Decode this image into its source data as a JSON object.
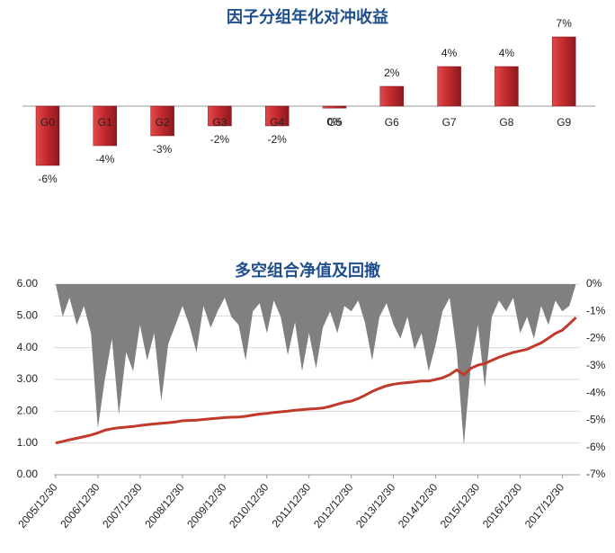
{
  "chart_data": [
    {
      "type": "bar",
      "title": "因子分组年化对冲收益",
      "categories": [
        "G0",
        "G1",
        "G2",
        "G3",
        "G4",
        "G5",
        "G6",
        "G7",
        "G8",
        "G9"
      ],
      "values": [
        -6,
        -4,
        -3,
        -2,
        -2,
        -0.2,
        2,
        4,
        4,
        7
      ],
      "value_labels": [
        "-6%",
        "-4%",
        "-3%",
        "-2%",
        "-2%",
        "0%",
        "2%",
        "4%",
        "4%",
        "7%"
      ],
      "color": "#c0272d"
    },
    {
      "type": "line",
      "title": "多空组合净值及回撤",
      "x": [
        "2005/12/30",
        "2006/02/28",
        "2006/04/28",
        "2006/06/30",
        "2006/08/31",
        "2006/10/31",
        "2006/12/29",
        "2007/02/28",
        "2007/04/30",
        "2007/06/29",
        "2007/08/31",
        "2007/10/31",
        "2007/12/28",
        "2008/02/29",
        "2008/04/30",
        "2008/06/30",
        "2008/08/29",
        "2008/10/31",
        "2008/12/31",
        "2009/02/27",
        "2009/04/30",
        "2009/06/30",
        "2009/08/31",
        "2009/10/30",
        "2009/12/31",
        "2010/02/26",
        "2010/04/30",
        "2010/06/30",
        "2010/08/31",
        "2010/10/29",
        "2010/12/31",
        "2011/02/28",
        "2011/04/29",
        "2011/06/30",
        "2011/08/31",
        "2011/10/31",
        "2011/12/30",
        "2012/02/29",
        "2012/04/27",
        "2012/06/29",
        "2012/08/31",
        "2012/10/31",
        "2012/12/31",
        "2013/02/28",
        "2013/04/26",
        "2013/06/28",
        "2013/08/30",
        "2013/10/31",
        "2013/12/31",
        "2014/02/28",
        "2014/04/30",
        "2014/06/30",
        "2014/08/29",
        "2014/10/31",
        "2014/12/31",
        "2015/02/27",
        "2015/04/30",
        "2015/06/30",
        "2015/08/31",
        "2015/10/30",
        "2015/12/31",
        "2016/02/29",
        "2016/04/29",
        "2016/06/30",
        "2016/08/31",
        "2016/10/31",
        "2016/12/30",
        "2017/02/28",
        "2017/04/28",
        "2017/06/30",
        "2017/08/31",
        "2017/10/31",
        "2017/12/29",
        "2018/02/28",
        "2018/04/27"
      ],
      "series": [
        {
          "type": "area",
          "axis": "y2",
          "color": "#808080",
          "values": [
            0,
            -1.2,
            -0.5,
            -1.5,
            -0.8,
            -1.8,
            -5.3,
            -3.5,
            -2.0,
            -4.8,
            -2.5,
            -3.2,
            -1.5,
            -2.8,
            -1.8,
            -4.3,
            -2.2,
            -1.5,
            -0.8,
            -1.5,
            -2.5,
            -0.8,
            -1.6,
            -1.0,
            -0.5,
            -1.2,
            -1.5,
            -2.8,
            -1.0,
            -0.7,
            -1.8,
            -0.6,
            -1.2,
            -2.6,
            -1.4,
            -3.2,
            -1.8,
            -3.1,
            -1.6,
            -1.0,
            -1.8,
            -0.8,
            -1.0,
            -0.6,
            -1.4,
            -2.8,
            -1.2,
            -0.7,
            -1.5,
            -2.0,
            -1.2,
            -2.4,
            -1.8,
            -3.2,
            -2.2,
            -1.0,
            -0.5,
            -2.5,
            -5.9,
            -3.0,
            -1.5,
            -3.8,
            -1.2,
            -0.6,
            -1.0,
            -0.5,
            -1.8,
            -1.2,
            -2.0,
            -0.8,
            -1.5,
            -0.6,
            -1.0,
            -0.8,
            0
          ]
        },
        {
          "type": "line",
          "color": "#c0392b",
          "values": [
            1.0,
            1.05,
            1.1,
            1.15,
            1.2,
            1.25,
            1.32,
            1.4,
            1.45,
            1.48,
            1.5,
            1.52,
            1.55,
            1.58,
            1.6,
            1.62,
            1.64,
            1.66,
            1.7,
            1.71,
            1.72,
            1.74,
            1.76,
            1.78,
            1.8,
            1.81,
            1.82,
            1.84,
            1.88,
            1.91,
            1.93,
            1.96,
            1.98,
            2.0,
            2.03,
            2.05,
            2.07,
            2.08,
            2.1,
            2.15,
            2.22,
            2.28,
            2.32,
            2.4,
            2.5,
            2.62,
            2.72,
            2.8,
            2.85,
            2.88,
            2.9,
            2.92,
            2.95,
            2.95,
            3.0,
            3.05,
            3.15,
            3.3,
            3.15,
            3.35,
            3.45,
            3.5,
            3.6,
            3.7,
            3.78,
            3.85,
            3.9,
            3.95,
            4.05,
            4.15,
            4.3,
            4.45,
            4.55,
            4.75,
            4.95
          ]
        }
      ],
      "xlim": [
        "2005/12/30",
        "2018/05/31"
      ],
      "xticks": [
        "2005/12/30",
        "2006/12/30",
        "2007/12/30",
        "2008/12/30",
        "2009/12/30",
        "2010/12/30",
        "2011/12/30",
        "2012/12/30",
        "2013/12/30",
        "2014/12/30",
        "2015/12/30",
        "2016/12/30",
        "2017/12/30"
      ],
      "ylim": [
        0,
        6
      ],
      "yticks": [
        {
          "value": 0,
          "label": "0.00"
        },
        {
          "value": 1,
          "label": "1.00"
        },
        {
          "value": 2,
          "label": "2.00"
        },
        {
          "value": 3,
          "label": "3.00"
        },
        {
          "value": 4,
          "label": "4.00"
        },
        {
          "value": 5,
          "label": "5.00"
        },
        {
          "value": 6,
          "label": "6.00"
        }
      ],
      "y2lim": [
        -7,
        0
      ],
      "y2ticks": [
        {
          "value": 0,
          "label": "0%"
        },
        {
          "value": -1,
          "label": "-1%"
        },
        {
          "value": -2,
          "label": "-2%"
        },
        {
          "value": -3,
          "label": "-3%"
        },
        {
          "value": -4,
          "label": "-4%"
        },
        {
          "value": -5,
          "label": "-5%"
        },
        {
          "value": -6,
          "label": "-6%"
        },
        {
          "value": -7,
          "label": "-7%"
        }
      ],
      "grid": true
    }
  ]
}
